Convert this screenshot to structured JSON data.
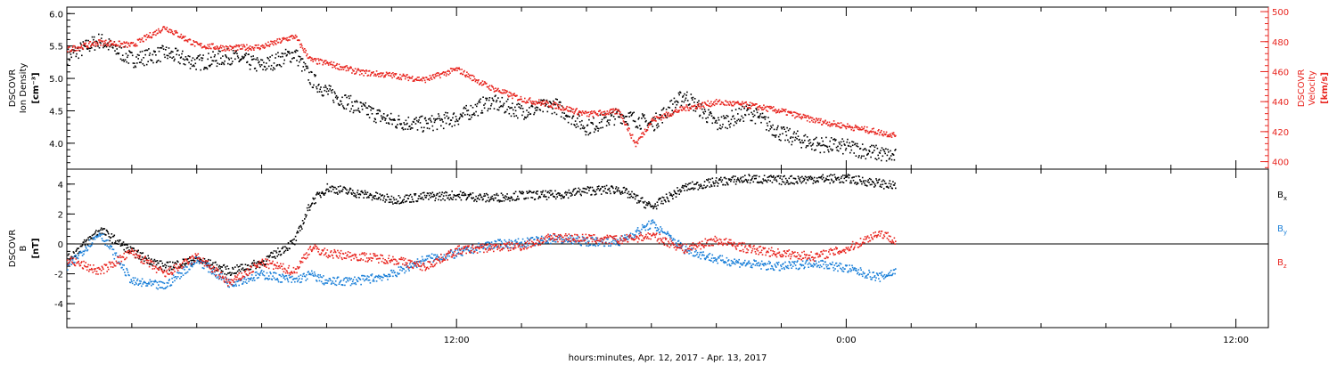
{
  "chart_data": [
    {
      "type": "scatter",
      "panel": "top",
      "ylabel_left": [
        "DSCOVR",
        "Ion Density",
        "[cm⁻³]"
      ],
      "ylabel_right": [
        "DSCOVR",
        "Velocity",
        "[km/s]"
      ],
      "ylim_left": [
        3.6,
        6.1
      ],
      "ylim_right": [
        395,
        503
      ],
      "left_ticks": [
        "4.0",
        "4.5",
        "5.0",
        "5.5",
        "6.0"
      ],
      "right_ticks": [
        "400",
        "420",
        "440",
        "460",
        "480",
        "500"
      ],
      "grid": false,
      "colors": {
        "density": "#000000",
        "velocity": "#e8251f"
      },
      "series": [
        {
          "name": "",
          "axis": "left",
          "color": "#000000",
          "knots_hours": [
            0,
            1,
            2,
            3,
            4,
            5,
            6,
            7,
            7.5,
            8,
            9,
            10,
            11,
            12,
            13,
            14,
            15,
            16,
            17,
            18,
            19,
            20,
            21,
            22,
            23,
            24,
            25,
            25.5
          ],
          "knots_values": [
            5.35,
            5.6,
            5.3,
            5.4,
            5.25,
            5.35,
            5.2,
            5.4,
            5.0,
            4.8,
            4.55,
            4.35,
            4.3,
            4.4,
            4.65,
            4.5,
            4.6,
            4.25,
            4.45,
            4.3,
            4.75,
            4.3,
            4.5,
            4.15,
            4.0,
            3.95,
            3.85,
            3.8
          ]
        },
        {
          "name": "",
          "axis": "right",
          "color": "#e8251f",
          "knots_hours": [
            0,
            1,
            2,
            3,
            4,
            5,
            6,
            7,
            7.5,
            8,
            9,
            10,
            11,
            12,
            13,
            14,
            15,
            16,
            17,
            17.5,
            18,
            19,
            20,
            21,
            22,
            23,
            24,
            25,
            25.5
          ],
          "knots_values": [
            475,
            480,
            478,
            490,
            478,
            476,
            477,
            484,
            468,
            466,
            460,
            458,
            455,
            462,
            450,
            442,
            438,
            432,
            434,
            412,
            428,
            436,
            440,
            438,
            434,
            428,
            424,
            420,
            418
          ]
        }
      ]
    },
    {
      "type": "scatter",
      "panel": "bottom",
      "ylabel_left": [
        "DSCOVR",
        "B",
        "[nT]"
      ],
      "ylim": [
        -5.6,
        5.0
      ],
      "left_ticks": [
        "-4",
        "-2",
        "0",
        "2",
        "4"
      ],
      "zero_line": true,
      "grid": false,
      "legend": "right",
      "series": [
        {
          "name": "Bx",
          "color": "#000000",
          "knots_hours": [
            0,
            1,
            2,
            3,
            4,
            5,
            6,
            7,
            7.5,
            8,
            9,
            10,
            11,
            12,
            13,
            14,
            15,
            16,
            17,
            18,
            19,
            20,
            21,
            22,
            23,
            24,
            25,
            25.5
          ],
          "knots_values": [
            -1.0,
            1.0,
            -0.5,
            -1.5,
            -1.0,
            -1.8,
            -1.2,
            0.2,
            2.8,
            3.8,
            3.4,
            3.0,
            3.2,
            3.3,
            3.1,
            3.3,
            3.3,
            3.6,
            3.7,
            2.5,
            3.8,
            4.2,
            4.4,
            4.3,
            4.4,
            4.4,
            4.1,
            3.9
          ]
        },
        {
          "name": "By",
          "color": "#1a7fd8",
          "knots_hours": [
            0,
            1,
            2,
            3,
            4,
            5,
            6,
            7,
            7.5,
            8,
            9,
            10,
            11,
            12,
            13,
            14,
            15,
            16,
            17,
            18,
            19,
            20,
            21,
            22,
            23,
            24,
            25,
            25.5
          ],
          "knots_values": [
            -1.5,
            0.8,
            -2.5,
            -2.8,
            -1.0,
            -2.6,
            -2.0,
            -2.4,
            -2.0,
            -2.5,
            -2.4,
            -2.0,
            -1.0,
            -0.6,
            0.0,
            0.1,
            0.4,
            0.2,
            0.2,
            1.4,
            -0.3,
            -1.0,
            -1.3,
            -1.5,
            -1.2,
            -1.6,
            -2.2,
            -1.8
          ]
        },
        {
          "name": "Bz",
          "color": "#e8251f",
          "knots_hours": [
            0,
            1,
            2,
            3,
            4,
            5,
            6,
            7,
            7.5,
            8,
            9,
            10,
            11,
            12,
            13,
            14,
            15,
            16,
            17,
            18,
            19,
            20,
            21,
            22,
            23,
            24,
            25,
            25.5
          ],
          "knots_values": [
            -1.0,
            -1.8,
            -0.5,
            -2.0,
            -0.8,
            -2.6,
            -1.2,
            -1.8,
            -0.2,
            -0.6,
            -0.8,
            -1.0,
            -1.5,
            -0.4,
            -0.2,
            -0.1,
            0.5,
            0.4,
            0.3,
            0.6,
            -0.3,
            0.3,
            -0.3,
            -0.6,
            -0.8,
            -0.3,
            0.8,
            0.3
          ]
        }
      ]
    }
  ],
  "legend_labels": [
    {
      "main": "B",
      "sub": "x",
      "color": "#000000"
    },
    {
      "main": "B",
      "sub": "y",
      "color": "#1a7fd8"
    },
    {
      "main": "B",
      "sub": "z",
      "color": "#e8251f"
    }
  ],
  "x_axis": {
    "tick_labels": [
      "12:00",
      "0:00",
      "12:00"
    ],
    "tick_hours": [
      12,
      24,
      36
    ],
    "xlim_hours": [
      0,
      37
    ],
    "label": "hours:minutes, Apr. 12, 2017 - Apr. 13, 2017"
  }
}
